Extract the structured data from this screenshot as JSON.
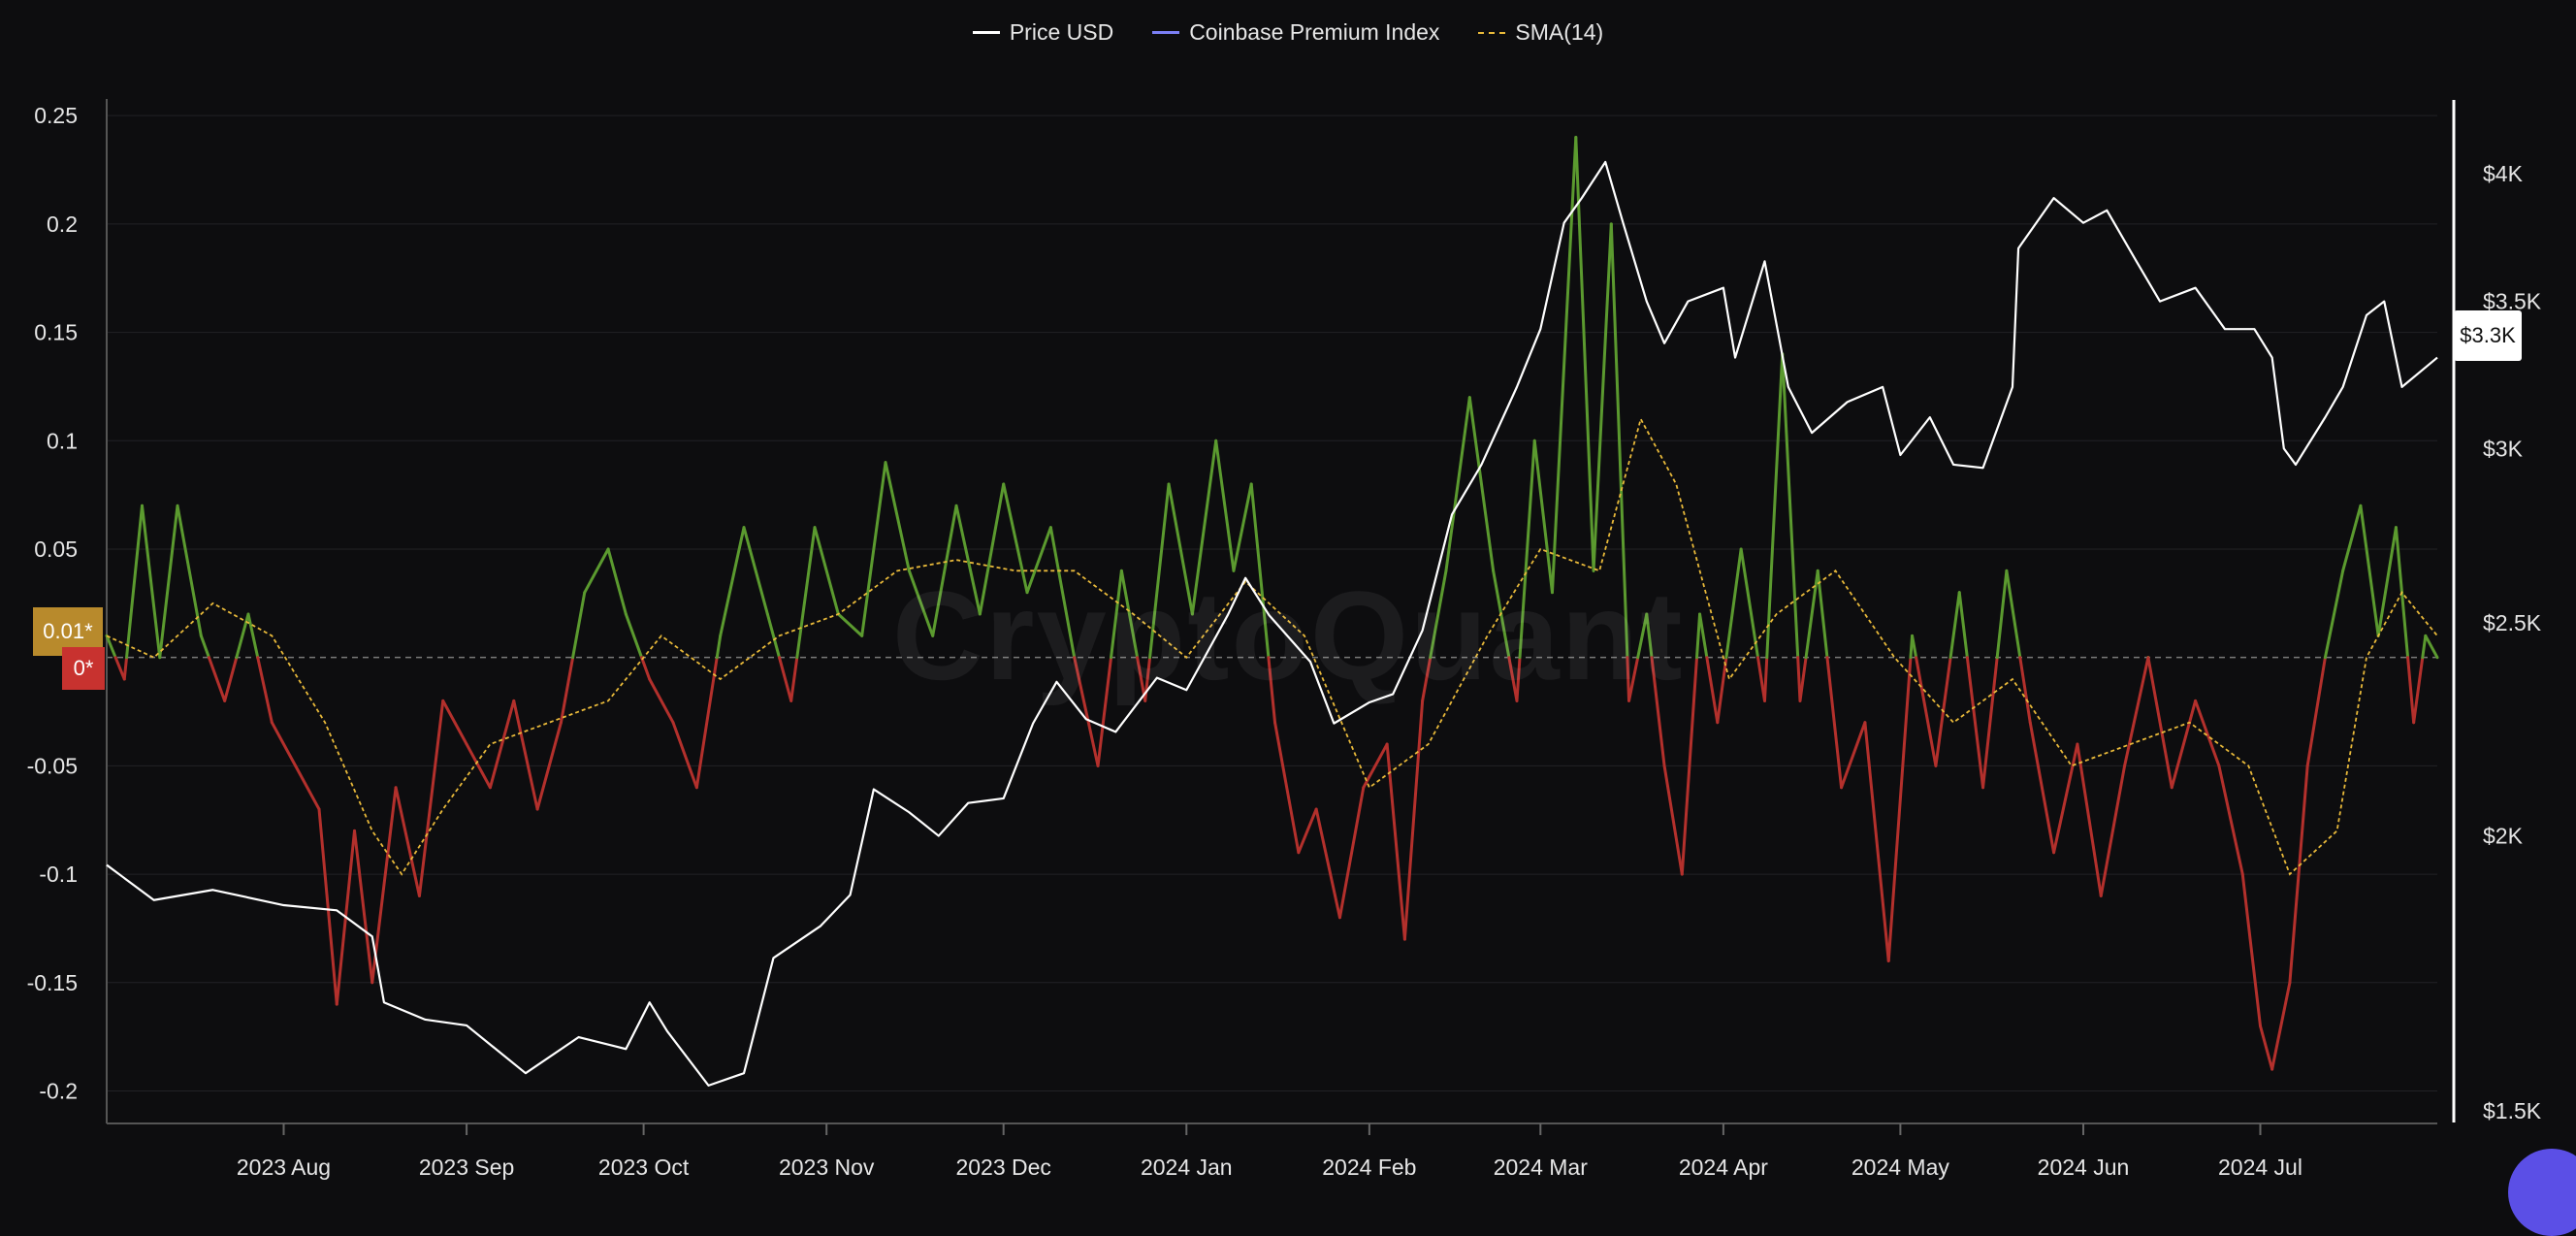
{
  "legend": [
    {
      "name": "Price USD",
      "color": "#ffffff"
    },
    {
      "name": "Coinbase Premium Index",
      "color": "#7b7ff5"
    },
    {
      "name": "SMA(14)",
      "color": "#e8b93a"
    }
  ],
  "watermark": "CryptoQuant",
  "last_values": {
    "premium_tag": "0.01*",
    "zero_tag": "0*",
    "price_tag": "$3.3K"
  },
  "colors": {
    "positive": "#5b9a2f",
    "negative": "#b3302c",
    "price": "#ffffff",
    "sma": "#e8b93a",
    "background": "#0d0d0f"
  },
  "icons": {
    "chat_button": "chat-bubble-icon"
  },
  "chart_data": {
    "type": "line",
    "x_range": [
      "2023-07-02",
      "2024-07-31"
    ],
    "x_ticks": [
      {
        "label": "2023 Aug",
        "date": "2023-08-01"
      },
      {
        "label": "2023 Sep",
        "date": "2023-09-01"
      },
      {
        "label": "2023 Oct",
        "date": "2023-10-01"
      },
      {
        "label": "2023 Nov",
        "date": "2023-11-01"
      },
      {
        "label": "2023 Dec",
        "date": "2023-12-01"
      },
      {
        "label": "2024 Jan",
        "date": "2024-01-01"
      },
      {
        "label": "2024 Feb",
        "date": "2024-02-01"
      },
      {
        "label": "2024 Mar",
        "date": "2024-03-01"
      },
      {
        "label": "2024 Apr",
        "date": "2024-04-01"
      },
      {
        "label": "2024 May",
        "date": "2024-05-01"
      },
      {
        "label": "2024 Jun",
        "date": "2024-06-01"
      },
      {
        "label": "2024 Jul",
        "date": "2024-07-01"
      }
    ],
    "y_left": {
      "range": [
        -0.215,
        0.255
      ],
      "ticks": [
        {
          "label": "0.25",
          "value": 0.25
        },
        {
          "label": "0.2",
          "value": 0.2
        },
        {
          "label": "0.15",
          "value": 0.15
        },
        {
          "label": "0.1",
          "value": 0.1
        },
        {
          "label": "0.05",
          "value": 0.05
        },
        {
          "label": "-0.05",
          "value": -0.05
        },
        {
          "label": "-0.1",
          "value": -0.1
        },
        {
          "label": "-0.15",
          "value": -0.15
        },
        {
          "label": "-0.2",
          "value": -0.2
        }
      ]
    },
    "y_right": {
      "scale": "log",
      "range": [
        1480,
        4300
      ],
      "ticks": [
        {
          "label": "$4K",
          "value": 4000
        },
        {
          "label": "$3.5K",
          "value": 3500
        },
        {
          "label": "$3K",
          "value": 3000
        },
        {
          "label": "$2.5K",
          "value": 2500
        },
        {
          "label": "$2K",
          "value": 2000
        },
        {
          "label": "$1.5K",
          "value": 1500
        }
      ]
    },
    "series": [
      {
        "name": "Price USD",
        "axis": "right",
        "points": [
          [
            "2023-07-02",
            1940
          ],
          [
            "2023-07-10",
            1870
          ],
          [
            "2023-07-20",
            1890
          ],
          [
            "2023-08-01",
            1860
          ],
          [
            "2023-08-10",
            1850
          ],
          [
            "2023-08-16",
            1800
          ],
          [
            "2023-08-18",
            1680
          ],
          [
            "2023-08-25",
            1650
          ],
          [
            "2023-09-01",
            1640
          ],
          [
            "2023-09-11",
            1560
          ],
          [
            "2023-09-20",
            1620
          ],
          [
            "2023-09-28",
            1600
          ],
          [
            "2023-10-02",
            1680
          ],
          [
            "2023-10-05",
            1630
          ],
          [
            "2023-10-12",
            1540
          ],
          [
            "2023-10-18",
            1560
          ],
          [
            "2023-10-23",
            1760
          ],
          [
            "2023-10-31",
            1820
          ],
          [
            "2023-11-05",
            1880
          ],
          [
            "2023-11-09",
            2100
          ],
          [
            "2023-11-15",
            2050
          ],
          [
            "2023-11-20",
            2000
          ],
          [
            "2023-11-25",
            2070
          ],
          [
            "2023-12-01",
            2080
          ],
          [
            "2023-12-06",
            2250
          ],
          [
            "2023-12-10",
            2350
          ],
          [
            "2023-12-15",
            2260
          ],
          [
            "2023-12-20",
            2230
          ],
          [
            "2023-12-27",
            2360
          ],
          [
            "2024-01-01",
            2330
          ],
          [
            "2024-01-08",
            2520
          ],
          [
            "2024-01-11",
            2620
          ],
          [
            "2024-01-15",
            2520
          ],
          [
            "2024-01-22",
            2400
          ],
          [
            "2024-01-26",
            2250
          ],
          [
            "2024-02-01",
            2300
          ],
          [
            "2024-02-05",
            2320
          ],
          [
            "2024-02-10",
            2480
          ],
          [
            "2024-02-15",
            2800
          ],
          [
            "2024-02-20",
            2950
          ],
          [
            "2024-02-26",
            3200
          ],
          [
            "2024-03-01",
            3400
          ],
          [
            "2024-03-05",
            3800
          ],
          [
            "2024-03-08",
            3900
          ],
          [
            "2024-03-12",
            4050
          ],
          [
            "2024-03-15",
            3800
          ],
          [
            "2024-03-19",
            3500
          ],
          [
            "2024-03-22",
            3350
          ],
          [
            "2024-03-26",
            3500
          ],
          [
            "2024-04-01",
            3550
          ],
          [
            "2024-04-03",
            3300
          ],
          [
            "2024-04-08",
            3650
          ],
          [
            "2024-04-12",
            3200
          ],
          [
            "2024-04-16",
            3050
          ],
          [
            "2024-04-22",
            3150
          ],
          [
            "2024-04-28",
            3200
          ],
          [
            "2024-05-01",
            2980
          ],
          [
            "2024-05-06",
            3100
          ],
          [
            "2024-05-10",
            2950
          ],
          [
            "2024-05-15",
            2940
          ],
          [
            "2024-05-20",
            3200
          ],
          [
            "2024-05-21",
            3700
          ],
          [
            "2024-05-27",
            3900
          ],
          [
            "2024-06-01",
            3800
          ],
          [
            "2024-06-05",
            3850
          ],
          [
            "2024-06-10",
            3650
          ],
          [
            "2024-06-14",
            3500
          ],
          [
            "2024-06-20",
            3550
          ],
          [
            "2024-06-25",
            3400
          ],
          [
            "2024-06-30",
            3400
          ],
          [
            "2024-07-03",
            3300
          ],
          [
            "2024-07-05",
            3000
          ],
          [
            "2024-07-07",
            2950
          ],
          [
            "2024-07-12",
            3100
          ],
          [
            "2024-07-15",
            3200
          ],
          [
            "2024-07-19",
            3450
          ],
          [
            "2024-07-22",
            3500
          ],
          [
            "2024-07-25",
            3200
          ],
          [
            "2024-07-31",
            3300
          ]
        ]
      },
      {
        "name": "Coinbase Premium Index",
        "axis": "left",
        "points": [
          [
            "2023-07-02",
            0.01
          ],
          [
            "2023-07-05",
            -0.01
          ],
          [
            "2023-07-08",
            0.07
          ],
          [
            "2023-07-11",
            0.0
          ],
          [
            "2023-07-14",
            0.07
          ],
          [
            "2023-07-18",
            0.01
          ],
          [
            "2023-07-22",
            -0.02
          ],
          [
            "2023-07-26",
            0.02
          ],
          [
            "2023-07-30",
            -0.03
          ],
          [
            "2023-08-03",
            -0.05
          ],
          [
            "2023-08-07",
            -0.07
          ],
          [
            "2023-08-10",
            -0.16
          ],
          [
            "2023-08-13",
            -0.08
          ],
          [
            "2023-08-16",
            -0.15
          ],
          [
            "2023-08-20",
            -0.06
          ],
          [
            "2023-08-24",
            -0.11
          ],
          [
            "2023-08-28",
            -0.02
          ],
          [
            "2023-09-01",
            -0.04
          ],
          [
            "2023-09-05",
            -0.06
          ],
          [
            "2023-09-09",
            -0.02
          ],
          [
            "2023-09-13",
            -0.07
          ],
          [
            "2023-09-17",
            -0.03
          ],
          [
            "2023-09-21",
            0.03
          ],
          [
            "2023-09-25",
            0.05
          ],
          [
            "2023-09-28",
            0.02
          ],
          [
            "2023-10-02",
            -0.01
          ],
          [
            "2023-10-06",
            -0.03
          ],
          [
            "2023-10-10",
            -0.06
          ],
          [
            "2023-10-14",
            0.01
          ],
          [
            "2023-10-18",
            0.06
          ],
          [
            "2023-10-22",
            0.02
          ],
          [
            "2023-10-26",
            -0.02
          ],
          [
            "2023-10-30",
            0.06
          ],
          [
            "2023-11-03",
            0.02
          ],
          [
            "2023-11-07",
            0.01
          ],
          [
            "2023-11-11",
            0.09
          ],
          [
            "2023-11-15",
            0.04
          ],
          [
            "2023-11-19",
            0.01
          ],
          [
            "2023-11-23",
            0.07
          ],
          [
            "2023-11-27",
            0.02
          ],
          [
            "2023-12-01",
            0.08
          ],
          [
            "2023-12-05",
            0.03
          ],
          [
            "2023-12-09",
            0.06
          ],
          [
            "2023-12-13",
            0.0
          ],
          [
            "2023-12-17",
            -0.05
          ],
          [
            "2023-12-21",
            0.04
          ],
          [
            "2023-12-25",
            -0.02
          ],
          [
            "2023-12-29",
            0.08
          ],
          [
            "2024-01-02",
            0.02
          ],
          [
            "2024-01-06",
            0.1
          ],
          [
            "2024-01-09",
            0.04
          ],
          [
            "2024-01-12",
            0.08
          ],
          [
            "2024-01-16",
            -0.03
          ],
          [
            "2024-01-20",
            -0.09
          ],
          [
            "2024-01-23",
            -0.07
          ],
          [
            "2024-01-27",
            -0.12
          ],
          [
            "2024-01-31",
            -0.06
          ],
          [
            "2024-02-04",
            -0.04
          ],
          [
            "2024-02-07",
            -0.13
          ],
          [
            "2024-02-10",
            -0.02
          ],
          [
            "2024-02-14",
            0.04
          ],
          [
            "2024-02-18",
            0.12
          ],
          [
            "2024-02-22",
            0.04
          ],
          [
            "2024-02-26",
            -0.02
          ],
          [
            "2024-02-29",
            0.1
          ],
          [
            "2024-03-03",
            0.03
          ],
          [
            "2024-03-07",
            0.24
          ],
          [
            "2024-03-10",
            0.04
          ],
          [
            "2024-03-13",
            0.2
          ],
          [
            "2024-03-16",
            -0.02
          ],
          [
            "2024-03-19",
            0.02
          ],
          [
            "2024-03-22",
            -0.05
          ],
          [
            "2024-03-25",
            -0.1
          ],
          [
            "2024-03-28",
            0.02
          ],
          [
            "2024-03-31",
            -0.03
          ],
          [
            "2024-04-04",
            0.05
          ],
          [
            "2024-04-08",
            -0.02
          ],
          [
            "2024-04-11",
            0.14
          ],
          [
            "2024-04-14",
            -0.02
          ],
          [
            "2024-04-17",
            0.04
          ],
          [
            "2024-04-21",
            -0.06
          ],
          [
            "2024-04-25",
            -0.03
          ],
          [
            "2024-04-29",
            -0.14
          ],
          [
            "2024-05-03",
            0.01
          ],
          [
            "2024-05-07",
            -0.05
          ],
          [
            "2024-05-11",
            0.03
          ],
          [
            "2024-05-15",
            -0.06
          ],
          [
            "2024-05-19",
            0.04
          ],
          [
            "2024-05-23",
            -0.03
          ],
          [
            "2024-05-27",
            -0.09
          ],
          [
            "2024-05-31",
            -0.04
          ],
          [
            "2024-06-04",
            -0.11
          ],
          [
            "2024-06-08",
            -0.05
          ],
          [
            "2024-06-12",
            0.0
          ],
          [
            "2024-06-16",
            -0.06
          ],
          [
            "2024-06-20",
            -0.02
          ],
          [
            "2024-06-24",
            -0.05
          ],
          [
            "2024-06-28",
            -0.1
          ],
          [
            "2024-07-01",
            -0.17
          ],
          [
            "2024-07-03",
            -0.19
          ],
          [
            "2024-07-06",
            -0.15
          ],
          [
            "2024-07-09",
            -0.05
          ],
          [
            "2024-07-12",
            0.0
          ],
          [
            "2024-07-15",
            0.04
          ],
          [
            "2024-07-18",
            0.07
          ],
          [
            "2024-07-21",
            0.01
          ],
          [
            "2024-07-24",
            0.06
          ],
          [
            "2024-07-27",
            -0.03
          ],
          [
            "2024-07-29",
            0.01
          ],
          [
            "2024-07-31",
            0.0
          ]
        ]
      },
      {
        "name": "SMA(14)",
        "axis": "left",
        "points": [
          [
            "2023-07-02",
            0.01
          ],
          [
            "2023-07-10",
            0.0
          ],
          [
            "2023-07-20",
            0.025
          ],
          [
            "2023-07-30",
            0.01
          ],
          [
            "2023-08-08",
            -0.03
          ],
          [
            "2023-08-16",
            -0.08
          ],
          [
            "2023-08-21",
            -0.1
          ],
          [
            "2023-08-28",
            -0.07
          ],
          [
            "2023-09-05",
            -0.04
          ],
          [
            "2023-09-15",
            -0.03
          ],
          [
            "2023-09-25",
            -0.02
          ],
          [
            "2023-10-04",
            0.01
          ],
          [
            "2023-10-14",
            -0.01
          ],
          [
            "2023-10-24",
            0.01
          ],
          [
            "2023-11-03",
            0.02
          ],
          [
            "2023-11-13",
            0.04
          ],
          [
            "2023-11-23",
            0.045
          ],
          [
            "2023-12-03",
            0.04
          ],
          [
            "2023-12-13",
            0.04
          ],
          [
            "2023-12-23",
            0.02
          ],
          [
            "2024-01-01",
            0.0
          ],
          [
            "2024-01-11",
            0.035
          ],
          [
            "2024-01-21",
            0.01
          ],
          [
            "2024-02-01",
            -0.06
          ],
          [
            "2024-02-11",
            -0.04
          ],
          [
            "2024-02-21",
            0.01
          ],
          [
            "2024-03-01",
            0.05
          ],
          [
            "2024-03-11",
            0.04
          ],
          [
            "2024-03-18",
            0.11
          ],
          [
            "2024-03-24",
            0.08
          ],
          [
            "2024-04-02",
            -0.01
          ],
          [
            "2024-04-10",
            0.02
          ],
          [
            "2024-04-20",
            0.04
          ],
          [
            "2024-04-30",
            0.0
          ],
          [
            "2024-05-10",
            -0.03
          ],
          [
            "2024-05-20",
            -0.01
          ],
          [
            "2024-05-30",
            -0.05
          ],
          [
            "2024-06-09",
            -0.04
          ],
          [
            "2024-06-19",
            -0.03
          ],
          [
            "2024-06-29",
            -0.05
          ],
          [
            "2024-07-06",
            -0.1
          ],
          [
            "2024-07-14",
            -0.08
          ],
          [
            "2024-07-19",
            0.0
          ],
          [
            "2024-07-25",
            0.03
          ],
          [
            "2024-07-31",
            0.01
          ]
        ]
      }
    ],
    "grid": true,
    "legend_position": "top-center"
  }
}
